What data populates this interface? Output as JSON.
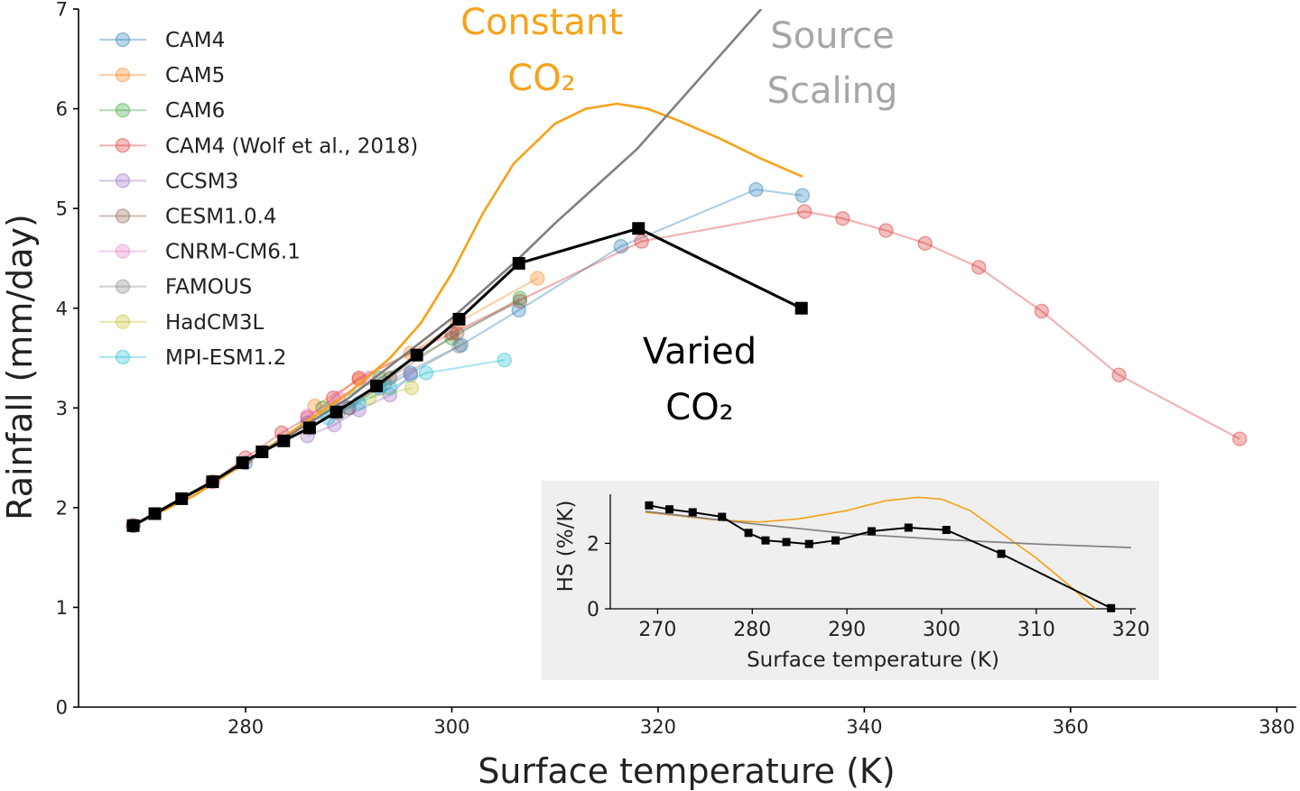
{
  "chart_data": [
    {
      "type": "line",
      "xlabel": "Surface temperature (K)",
      "ylabel": "Rainfall (mm/day)",
      "xlim": [
        263.8,
        381.9
      ],
      "ylim": [
        0,
        7
      ],
      "xticks": [
        280,
        300,
        320,
        340,
        360,
        380
      ],
      "yticks": [
        0,
        1,
        2,
        3,
        4,
        5,
        6,
        7
      ],
      "grid": false,
      "legend_placement": "top-left",
      "series": [
        {
          "name": "CAM4",
          "color": "#1f77b4",
          "marker": "circle",
          "x": [
            269.1,
            280,
            286,
            290,
            293,
            296,
            300.9,
            306.5,
            316.4,
            329.5,
            334
          ],
          "y": [
            1.82,
            2.45,
            2.85,
            3.0,
            3.2,
            3.35,
            3.63,
            3.98,
            4.62,
            5.19,
            5.13
          ]
        },
        {
          "name": "CAM5",
          "color": "#ff7f0e",
          "marker": "circle",
          "x": [
            286.7,
            291,
            296,
            300.5,
            308.3
          ],
          "y": [
            3.02,
            3.28,
            3.55,
            3.85,
            4.3
          ]
        },
        {
          "name": "CAM6",
          "color": "#2ca02c",
          "marker": "circle",
          "x": [
            287.5,
            293,
            300,
            306.6
          ],
          "y": [
            3.0,
            3.3,
            3.7,
            4.1
          ]
        },
        {
          "name": "CAM4 (Wolf et al., 2018)",
          "color": "#d62728",
          "marker": "circle",
          "x": [
            269.1,
            276.8,
            280,
            283.5,
            286,
            288.5,
            291,
            300,
            318.4,
            334.2,
            337.9,
            342.1,
            345.9,
            351.1,
            357.2,
            364.7,
            376.4
          ],
          "y": [
            1.82,
            2.26,
            2.5,
            2.75,
            2.9,
            3.1,
            3.3,
            3.75,
            4.67,
            4.97,
            4.9,
            4.78,
            4.65,
            4.41,
            3.97,
            3.33,
            2.69
          ]
        },
        {
          "name": "CCSM3",
          "color": "#9467bd",
          "marker": "circle",
          "x": [
            286,
            288.6,
            291,
            294,
            296
          ],
          "y": [
            2.72,
            2.83,
            2.98,
            3.13,
            3.33
          ]
        },
        {
          "name": "CESM1.0.4",
          "color": "#8c564b",
          "marker": "circle",
          "x": [
            290,
            294,
            300.5,
            306.6
          ],
          "y": [
            3.0,
            3.3,
            3.75,
            4.07
          ]
        },
        {
          "name": "CNRM-CM6.1",
          "color": "#e377c2",
          "marker": "circle",
          "x": [
            286,
            289,
            292
          ],
          "y": [
            2.92,
            3.1,
            3.3
          ]
        },
        {
          "name": "FAMOUS",
          "color": "#7f7f7f",
          "marker": "circle",
          "x": [
            289,
            293.5,
            300.7
          ],
          "y": [
            2.95,
            3.25,
            3.62
          ]
        },
        {
          "name": "HadCM3L",
          "color": "#bcbd22",
          "marker": "circle",
          "x": [
            292,
            296.1
          ],
          "y": [
            3.1,
            3.2
          ]
        },
        {
          "name": "MPI-ESM1.2",
          "color": "#17becf",
          "marker": "circle",
          "x": [
            288,
            291,
            294,
            297.5,
            305.1
          ],
          "y": [
            2.9,
            3.05,
            3.2,
            3.35,
            3.48
          ]
        },
        {
          "label": "Constant CO₂",
          "color": "#f5a31a",
          "marker": "none",
          "x": [
            269,
            275,
            280,
            285,
            290,
            294,
            297,
            300,
            303,
            306,
            310,
            313,
            316,
            319,
            322,
            326,
            330,
            334
          ],
          "y": [
            1.82,
            2.12,
            2.45,
            2.8,
            3.15,
            3.5,
            3.85,
            4.35,
            4.95,
            5.45,
            5.85,
            6.0,
            6.05,
            6.0,
            5.88,
            5.7,
            5.5,
            5.32
          ]
        },
        {
          "label": "Source Scaling",
          "color": "#808080",
          "marker": "none",
          "x": [
            269,
            280,
            290,
            300,
            306,
            310,
            318,
            330
          ],
          "y": [
            1.82,
            2.45,
            3.1,
            3.9,
            4.45,
            4.85,
            5.6,
            7.0
          ]
        },
        {
          "label": "Varied CO₂",
          "color": "#000000",
          "marker": "square",
          "x": [
            269.1,
            271.2,
            273.8,
            276.8,
            279.7,
            281.6,
            283.7,
            286.2,
            288.8,
            292.7,
            296.6,
            300.7,
            306.5,
            318.1,
            333.9
          ],
          "y": [
            1.82,
            1.94,
            2.09,
            2.26,
            2.45,
            2.56,
            2.67,
            2.8,
            2.96,
            3.22,
            3.53,
            3.89,
            4.45,
            4.8,
            4.0
          ]
        }
      ],
      "annotations": [
        {
          "lines": [
            "Constant",
            "CO₂"
          ],
          "color": "#f5a31a"
        },
        {
          "lines": [
            "Source",
            "Scaling"
          ],
          "color": "#a6a6a6"
        },
        {
          "lines": [
            "Varied",
            "CO₂"
          ],
          "color": "#000000"
        }
      ]
    },
    {
      "type": "line",
      "inset": true,
      "background": "#efefef",
      "xlabel": "Surface temperature (K)",
      "ylabel": "HS (%/K)",
      "xlim": [
        265,
        320.5
      ],
      "ylim": [
        0,
        3.5
      ],
      "xticks": [
        270,
        280,
        290,
        300,
        310,
        320
      ],
      "yticks": [
        0,
        2
      ],
      "series": [
        {
          "color": "#f5a31a",
          "marker": "none",
          "x": [
            268.7,
            272,
            276,
            280.8,
            285,
            290,
            294,
            297.5,
            300,
            303,
            307.5,
            310,
            313.75,
            316.25
          ],
          "y": [
            2.95,
            2.85,
            2.72,
            2.65,
            2.75,
            3.0,
            3.3,
            3.41,
            3.35,
            3.0,
            2.07,
            1.55,
            0.65,
            0
          ]
        },
        {
          "color": "#808080",
          "marker": "none",
          "x": [
            268.7,
            280,
            290,
            300,
            310,
            320
          ],
          "y": [
            2.98,
            2.6,
            2.3,
            2.12,
            1.98,
            1.87
          ]
        },
        {
          "color": "#000000",
          "marker": "square",
          "x": [
            269.1,
            271.25,
            273.7,
            276.8,
            279.6,
            281.4,
            283.6,
            286.0,
            288.8,
            292.6,
            296.5,
            300.5,
            306.3,
            317.9
          ],
          "y": [
            3.16,
            3.04,
            2.95,
            2.81,
            2.32,
            2.09,
            2.04,
            1.98,
            2.09,
            2.37,
            2.48,
            2.41,
            1.68,
            0.02
          ]
        }
      ]
    }
  ]
}
